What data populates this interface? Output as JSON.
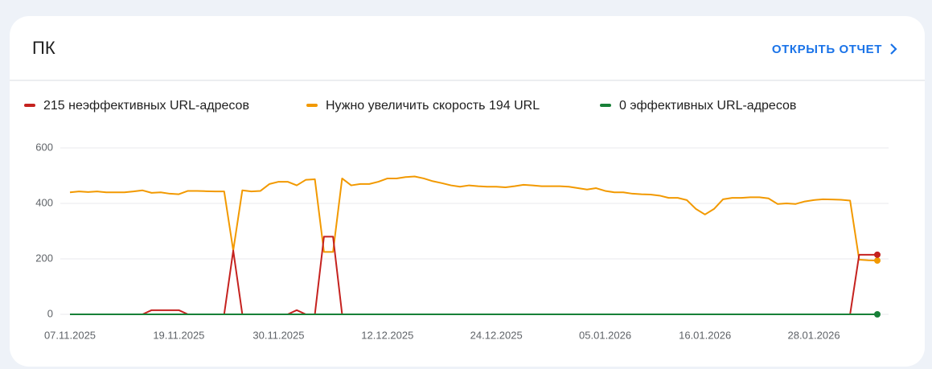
{
  "header": {
    "title": "ПК",
    "link": "ОТКРЫТЬ ОТЧЕТ"
  },
  "chart_data": {
    "type": "line",
    "categories": [
      "07.11.2025",
      null,
      null,
      null,
      null,
      null,
      null,
      null,
      null,
      null,
      null,
      null,
      "19.11.2025",
      null,
      null,
      null,
      null,
      null,
      null,
      null,
      null,
      null,
      null,
      "30.11.2025",
      null,
      null,
      null,
      null,
      null,
      null,
      null,
      null,
      null,
      null,
      null,
      "12.12.2025",
      null,
      null,
      null,
      null,
      null,
      null,
      null,
      null,
      null,
      null,
      null,
      "24.12.2025",
      null,
      null,
      null,
      null,
      null,
      null,
      null,
      null,
      null,
      null,
      null,
      "05.01.2026",
      null,
      null,
      null,
      null,
      null,
      null,
      null,
      null,
      null,
      null,
      "16.01.2026",
      null,
      null,
      null,
      null,
      null,
      null,
      null,
      null,
      null,
      null,
      null,
      "28.01.2026",
      null,
      null,
      null,
      null,
      null,
      null,
      null
    ],
    "series": [
      {
        "name": "215 неэффективных URL-адресов",
        "color": "#c5221f",
        "values": [
          0,
          0,
          0,
          0,
          0,
          0,
          0,
          0,
          0,
          15,
          15,
          15,
          15,
          0,
          0,
          0,
          0,
          0,
          230,
          0,
          0,
          0,
          0,
          0,
          0,
          15,
          0,
          0,
          280,
          280,
          0,
          0,
          0,
          0,
          0,
          0,
          0,
          0,
          0,
          0,
          0,
          0,
          0,
          0,
          0,
          0,
          0,
          0,
          0,
          0,
          0,
          0,
          0,
          0,
          0,
          0,
          0,
          0,
          0,
          0,
          0,
          0,
          0,
          0,
          0,
          0,
          0,
          0,
          0,
          0,
          0,
          0,
          0,
          0,
          0,
          0,
          0,
          0,
          0,
          0,
          0,
          0,
          0,
          0,
          0,
          0,
          0,
          215,
          215,
          215
        ]
      },
      {
        "name": "Нужно увеличить скорость 194 URL",
        "color": "#f29900",
        "values": [
          440,
          443,
          441,
          443,
          440,
          440,
          440,
          443,
          447,
          438,
          440,
          435,
          433,
          445,
          445,
          444,
          443,
          443,
          230,
          447,
          443,
          445,
          470,
          478,
          478,
          465,
          485,
          487,
          225,
          225,
          490,
          465,
          470,
          470,
          478,
          490,
          490,
          495,
          497,
          490,
          480,
          473,
          465,
          460,
          465,
          462,
          460,
          460,
          458,
          462,
          467,
          465,
          462,
          462,
          462,
          460,
          455,
          450,
          455,
          445,
          440,
          440,
          435,
          433,
          432,
          428,
          420,
          420,
          412,
          380,
          360,
          380,
          415,
          420,
          420,
          422,
          422,
          418,
          398,
          400,
          398,
          407,
          412,
          415,
          414,
          413,
          410,
          197,
          195,
          194
        ]
      },
      {
        "name": "0 эффективных URL-адресов",
        "color": "#188038",
        "values": [
          0,
          0,
          0,
          0,
          0,
          0,
          0,
          0,
          0,
          0,
          0,
          0,
          0,
          0,
          0,
          0,
          0,
          0,
          0,
          0,
          0,
          0,
          0,
          0,
          0,
          0,
          0,
          0,
          0,
          0,
          0,
          0,
          0,
          0,
          0,
          0,
          0,
          0,
          0,
          0,
          0,
          0,
          0,
          0,
          0,
          0,
          0,
          0,
          0,
          0,
          0,
          0,
          0,
          0,
          0,
          0,
          0,
          0,
          0,
          0,
          0,
          0,
          0,
          0,
          0,
          0,
          0,
          0,
          0,
          0,
          0,
          0,
          0,
          0,
          0,
          0,
          0,
          0,
          0,
          0,
          0,
          0,
          0,
          0,
          0,
          0,
          0,
          0,
          0,
          0
        ]
      }
    ],
    "ylim": [
      0,
      600
    ],
    "yticks": [
      0,
      200,
      400,
      600
    ],
    "grid": true
  }
}
